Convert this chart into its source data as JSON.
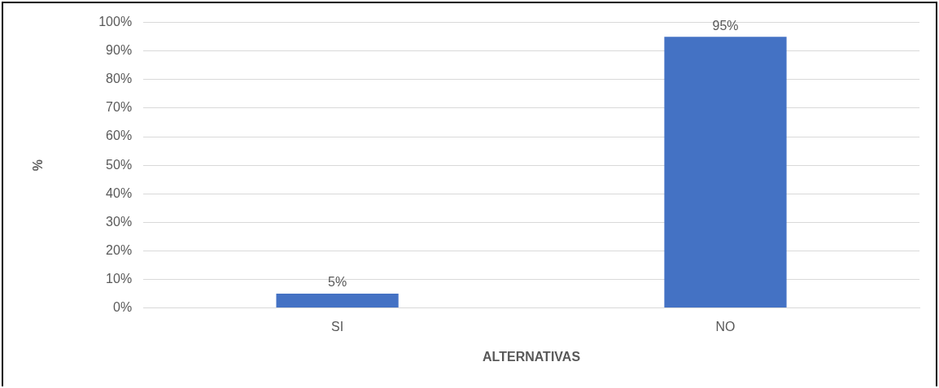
{
  "chart_data": {
    "type": "bar",
    "xlabel": "ALTERNATIVAS",
    "ylabel": "%",
    "categories": [
      "SI",
      "NO"
    ],
    "series": [
      {
        "color": "#4472c4",
        "values": [
          5,
          95
        ],
        "value_labels": [
          "5%",
          "95%"
        ]
      }
    ],
    "ylim": [
      0,
      100
    ],
    "yticks": [
      {
        "value": 0,
        "label": "0%"
      },
      {
        "value": 10,
        "label": "10%"
      },
      {
        "value": 20,
        "label": "20%"
      },
      {
        "value": 30,
        "label": "30%"
      },
      {
        "value": 40,
        "label": "40%"
      },
      {
        "value": 50,
        "label": "50%"
      },
      {
        "value": 60,
        "label": "60%"
      },
      {
        "value": 70,
        "label": "70%"
      },
      {
        "value": 80,
        "label": "80%"
      },
      {
        "value": 90,
        "label": "90%"
      },
      {
        "value": 100,
        "label": "100%"
      }
    ],
    "grid": "y",
    "legend": false
  }
}
